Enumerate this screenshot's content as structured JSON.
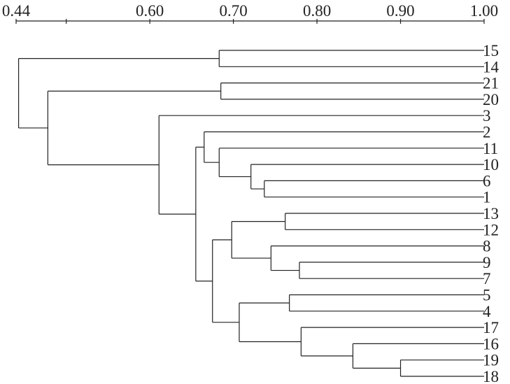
{
  "chart_data": {
    "type": "dendrogram",
    "orientation": "horizontal",
    "axis": {
      "range": [
        0.44,
        1.0
      ],
      "ticks": [
        0.44,
        0.5,
        0.6,
        0.7,
        0.8,
        0.9,
        1.0
      ],
      "tick_labels": [
        "0.44",
        "",
        "0.60",
        "0.70",
        "0.80",
        "0.90",
        "1.00"
      ]
    },
    "leaves": [
      "15",
      "14",
      "21",
      "20",
      "3",
      "2",
      "11",
      "10",
      "6",
      "1",
      "13",
      "12",
      "8",
      "9",
      "7",
      "5",
      "4",
      "17",
      "16",
      "19",
      "18"
    ],
    "merges": [
      {
        "id": "n15_14",
        "children": [
          "15",
          "14"
        ],
        "similarity": 0.683
      },
      {
        "id": "n21_20",
        "children": [
          "21",
          "20"
        ],
        "similarity": 0.685
      },
      {
        "id": "n6_1",
        "children": [
          "6",
          "1"
        ],
        "similarity": 0.737
      },
      {
        "id": "n10_6_1",
        "children": [
          "10",
          "n6_1"
        ],
        "similarity": 0.721
      },
      {
        "id": "n11_10",
        "children": [
          "11",
          "n10_6_1"
        ],
        "similarity": 0.683
      },
      {
        "id": "n2_11",
        "children": [
          "2",
          "n11_10"
        ],
        "similarity": 0.665
      },
      {
        "id": "n13_12",
        "children": [
          "13",
          "12"
        ],
        "similarity": 0.762
      },
      {
        "id": "n9_7",
        "children": [
          "9",
          "7"
        ],
        "similarity": 0.779
      },
      {
        "id": "n8_9_7",
        "children": [
          "8",
          "n9_7"
        ],
        "similarity": 0.745
      },
      {
        "id": "n13_8",
        "children": [
          "n13_12",
          "n8_9_7"
        ],
        "similarity": 0.698
      },
      {
        "id": "n5_4",
        "children": [
          "5",
          "4"
        ],
        "similarity": 0.767
      },
      {
        "id": "n19_18",
        "children": [
          "19",
          "18"
        ],
        "similarity": 0.9
      },
      {
        "id": "n16_19",
        "children": [
          "16",
          "n19_18"
        ],
        "similarity": 0.843
      },
      {
        "id": "n17_16",
        "children": [
          "17",
          "n16_19"
        ],
        "similarity": 0.781
      },
      {
        "id": "n5_17",
        "children": [
          "n5_4",
          "n17_16"
        ],
        "similarity": 0.707
      },
      {
        "id": "n13_5",
        "children": [
          "n13_8",
          "n5_17"
        ],
        "similarity": 0.675
      },
      {
        "id": "n2_13",
        "children": [
          "n2_11",
          "n13_5"
        ],
        "similarity": 0.655
      },
      {
        "id": "n3_2",
        "children": [
          "3",
          "n2_13"
        ],
        "similarity": 0.611
      },
      {
        "id": "n21_3",
        "children": [
          "n21_20",
          "n3_2"
        ],
        "similarity": 0.478
      },
      {
        "id": "root",
        "children": [
          "n15_14",
          "n21_3"
        ],
        "similarity": 0.443
      }
    ]
  }
}
